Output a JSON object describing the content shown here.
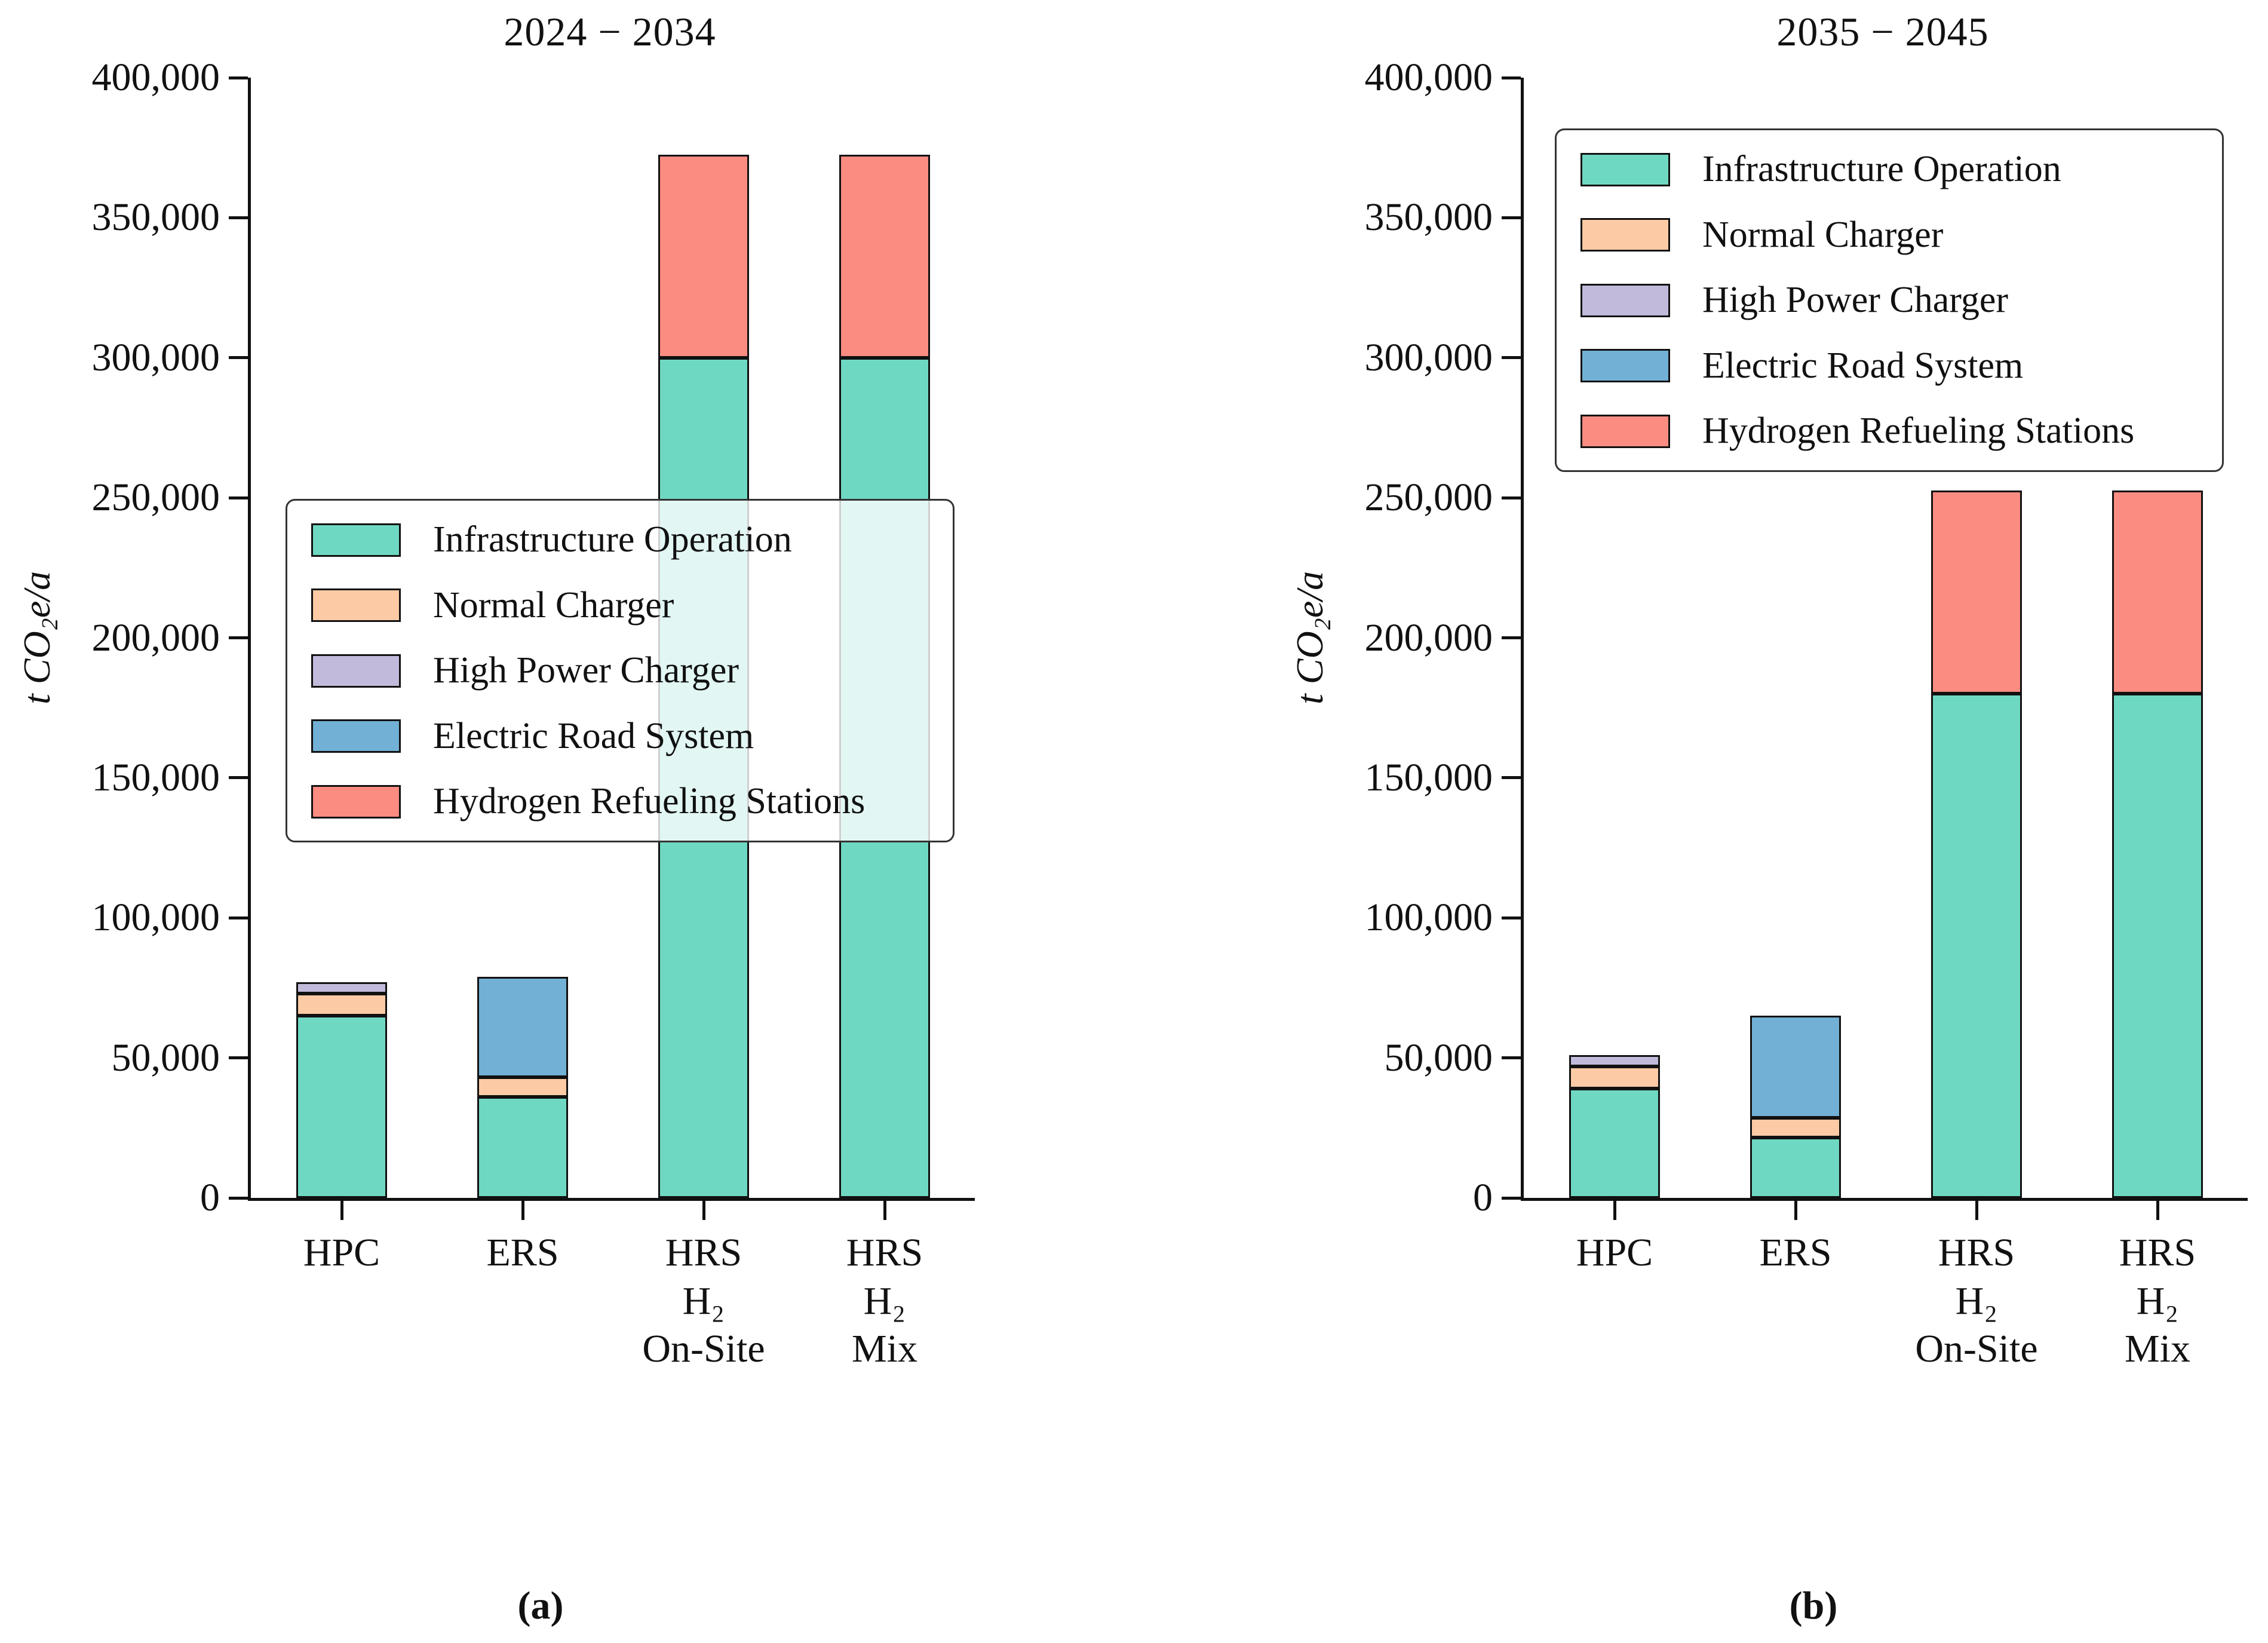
{
  "figure": {
    "background": "#ffffff",
    "axis_color": "#111111",
    "bar_edge_color": "#111111",
    "legend_border_color": "#333333"
  },
  "chart_data": [
    {
      "type": "bar",
      "stacked": true,
      "title": "2024 − 2034",
      "caption": "(a)",
      "ylabel": "t CO₂e/a",
      "xlabel": "",
      "grid": false,
      "ylim": [
        0,
        400000
      ],
      "yticks": [
        0,
        50000,
        100000,
        150000,
        200000,
        250000,
        300000,
        350000,
        400000
      ],
      "ytick_labels": [
        "0",
        "50,000",
        "100,000",
        "150,000",
        "200,000",
        "250,000",
        "300,000",
        "350,000",
        "400,000"
      ],
      "categories": [
        [
          "HPC"
        ],
        [
          "ERS"
        ],
        [
          "HRS",
          "H₂",
          "On-Site"
        ],
        [
          "HRS",
          "H₂",
          "Mix"
        ]
      ],
      "series": [
        {
          "name": "Infrastructure Operation",
          "color": "#6FD8C3",
          "values": [
            65000,
            36000,
            300000,
            300000
          ]
        },
        {
          "name": "Normal Charger",
          "color": "#FCCAA4",
          "values": [
            8000,
            7000,
            0,
            0
          ]
        },
        {
          "name": "High Power Charger",
          "color": "#C2BADB",
          "values": [
            4000,
            0,
            0,
            0
          ]
        },
        {
          "name": "Electric Road System",
          "color": "#72B1D5",
          "values": [
            0,
            36000,
            0,
            0
          ]
        },
        {
          "name": "Hydrogen Refueling Stations",
          "color": "#FA8C82",
          "values": [
            0,
            0,
            72500,
            72500
          ]
        }
      ],
      "totals": [
        77000,
        79000,
        372500,
        372500
      ],
      "legend_position": "center-left"
    },
    {
      "type": "bar",
      "stacked": true,
      "title": "2035 − 2045",
      "caption": "(b)",
      "ylabel": "t CO₂e/a",
      "xlabel": "",
      "grid": false,
      "ylim": [
        0,
        400000
      ],
      "yticks": [
        0,
        50000,
        100000,
        150000,
        200000,
        250000,
        300000,
        350000,
        400000
      ],
      "ytick_labels": [
        "0",
        "50,000",
        "100,000",
        "150,000",
        "200,000",
        "250,000",
        "300,000",
        "350,000",
        "400,000"
      ],
      "categories": [
        [
          "HPC"
        ],
        [
          "ERS"
        ],
        [
          "HRS",
          "H₂",
          "On-Site"
        ],
        [
          "HRS",
          "H₂",
          "Mix"
        ]
      ],
      "series": [
        {
          "name": "Infrastructure Operation",
          "color": "#6FD8C3",
          "values": [
            39000,
            21500,
            180000,
            180000
          ]
        },
        {
          "name": "Normal Charger",
          "color": "#FCCAA4",
          "values": [
            8000,
            7000,
            0,
            0
          ]
        },
        {
          "name": "High Power Charger",
          "color": "#C2BADB",
          "values": [
            4000,
            0,
            0,
            0
          ]
        },
        {
          "name": "Electric Road System",
          "color": "#72B1D5",
          "values": [
            0,
            36500,
            0,
            0
          ]
        },
        {
          "name": "Hydrogen Refueling Stations",
          "color": "#FA8C82",
          "values": [
            0,
            0,
            72500,
            72500
          ]
        }
      ],
      "totals": [
        51000,
        65000,
        252500,
        252500
      ],
      "legend_position": "upper-left"
    }
  ]
}
